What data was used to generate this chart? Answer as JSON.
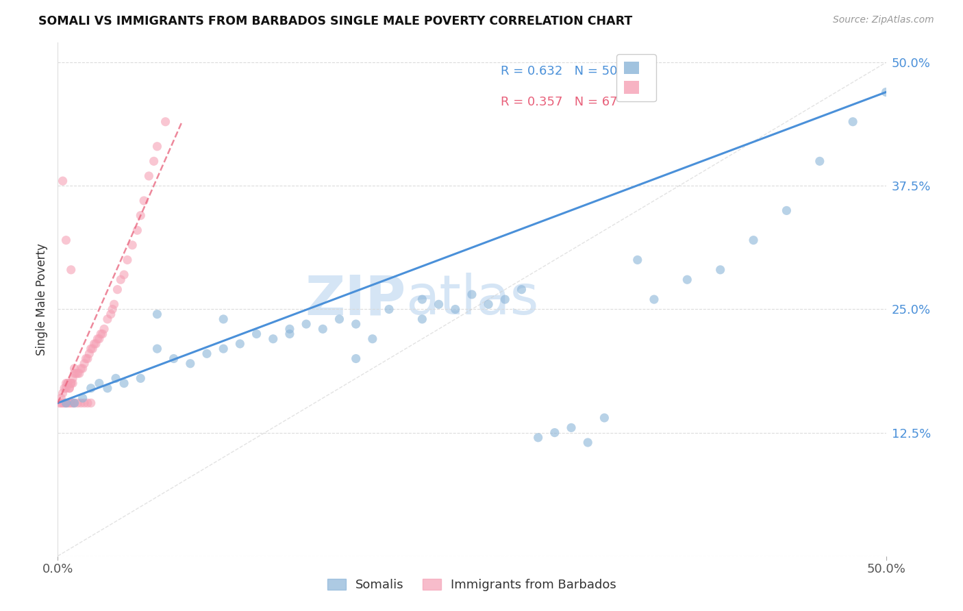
{
  "title": "SOMALI VS IMMIGRANTS FROM BARBADOS SINGLE MALE POVERTY CORRELATION CHART",
  "source": "Source: ZipAtlas.com",
  "ylabel": "Single Male Poverty",
  "xlim": [
    0.0,
    0.5
  ],
  "ylim": [
    0.0,
    0.52
  ],
  "legend_somali_r": "R = 0.632",
  "legend_somali_n": "N = 50",
  "legend_barbados_r": "R = 0.357",
  "legend_barbados_n": "N = 67",
  "somali_color": "#8ab4d8",
  "barbados_color": "#f5a0b5",
  "trendline_somali_color": "#4a90d9",
  "trendline_barbados_color": "#e8607a",
  "diagonal_color": "#d0d0d0",
  "watermark_zip": "ZIP",
  "watermark_atlas": "atlas",
  "watermark_color": "#d5e5f5",
  "somali_x": [
    0.005,
    0.01,
    0.015,
    0.02,
    0.025,
    0.03,
    0.035,
    0.04,
    0.05,
    0.06,
    0.07,
    0.08,
    0.09,
    0.1,
    0.11,
    0.12,
    0.13,
    0.14,
    0.15,
    0.16,
    0.17,
    0.18,
    0.19,
    0.2,
    0.22,
    0.23,
    0.24,
    0.25,
    0.26,
    0.27,
    0.28,
    0.29,
    0.3,
    0.31,
    0.32,
    0.33,
    0.35,
    0.36,
    0.38,
    0.4,
    0.42,
    0.44,
    0.46,
    0.48,
    0.5,
    0.06,
    0.1,
    0.14,
    0.18,
    0.22
  ],
  "somali_y": [
    0.155,
    0.155,
    0.16,
    0.17,
    0.175,
    0.17,
    0.18,
    0.175,
    0.18,
    0.21,
    0.2,
    0.195,
    0.205,
    0.21,
    0.215,
    0.225,
    0.22,
    0.225,
    0.235,
    0.23,
    0.24,
    0.235,
    0.22,
    0.25,
    0.26,
    0.255,
    0.25,
    0.265,
    0.255,
    0.26,
    0.27,
    0.12,
    0.125,
    0.13,
    0.115,
    0.14,
    0.3,
    0.26,
    0.28,
    0.29,
    0.32,
    0.35,
    0.4,
    0.44,
    0.47,
    0.245,
    0.24,
    0.23,
    0.2,
    0.24
  ],
  "barbados_x": [
    0.001,
    0.002,
    0.003,
    0.004,
    0.005,
    0.005,
    0.006,
    0.006,
    0.007,
    0.007,
    0.008,
    0.008,
    0.009,
    0.009,
    0.01,
    0.01,
    0.011,
    0.012,
    0.013,
    0.014,
    0.015,
    0.016,
    0.017,
    0.018,
    0.019,
    0.02,
    0.021,
    0.022,
    0.023,
    0.024,
    0.025,
    0.026,
    0.027,
    0.028,
    0.03,
    0.032,
    0.033,
    0.034,
    0.036,
    0.038,
    0.04,
    0.042,
    0.045,
    0.048,
    0.05,
    0.052,
    0.055,
    0.058,
    0.06,
    0.065,
    0.002,
    0.003,
    0.004,
    0.005,
    0.006,
    0.007,
    0.008,
    0.009,
    0.01,
    0.012,
    0.014,
    0.016,
    0.018,
    0.02,
    0.003,
    0.005,
    0.008
  ],
  "barbados_y": [
    0.155,
    0.16,
    0.165,
    0.17,
    0.17,
    0.175,
    0.175,
    0.175,
    0.17,
    0.17,
    0.175,
    0.175,
    0.175,
    0.18,
    0.185,
    0.19,
    0.185,
    0.185,
    0.185,
    0.19,
    0.19,
    0.195,
    0.2,
    0.2,
    0.205,
    0.21,
    0.21,
    0.215,
    0.215,
    0.22,
    0.22,
    0.225,
    0.225,
    0.23,
    0.24,
    0.245,
    0.25,
    0.255,
    0.27,
    0.28,
    0.285,
    0.3,
    0.315,
    0.33,
    0.345,
    0.36,
    0.385,
    0.4,
    0.415,
    0.44,
    0.155,
    0.155,
    0.155,
    0.155,
    0.155,
    0.155,
    0.155,
    0.155,
    0.155,
    0.155,
    0.155,
    0.155,
    0.155,
    0.155,
    0.38,
    0.32,
    0.29
  ],
  "somali_trendline_x0": 0.0,
  "somali_trendline_y0": 0.155,
  "somali_trendline_x1": 0.5,
  "somali_trendline_y1": 0.47,
  "barbados_trendline_x0": 0.0,
  "barbados_trendline_y0": 0.155,
  "barbados_trendline_x1": 0.075,
  "barbados_trendline_y1": 0.44,
  "ytick_vals": [
    0.0,
    0.125,
    0.25,
    0.375,
    0.5
  ],
  "ytick_labels": [
    "",
    "12.5%",
    "25.0%",
    "37.5%",
    "50.0%"
  ],
  "xtick_vals": [
    0.0,
    0.5
  ],
  "xtick_labels": [
    "0.0%",
    "50.0%"
  ],
  "legend_border_color": "#cccccc",
  "tick_color": "#4a90d9",
  "grid_color": "#d8d8d8"
}
